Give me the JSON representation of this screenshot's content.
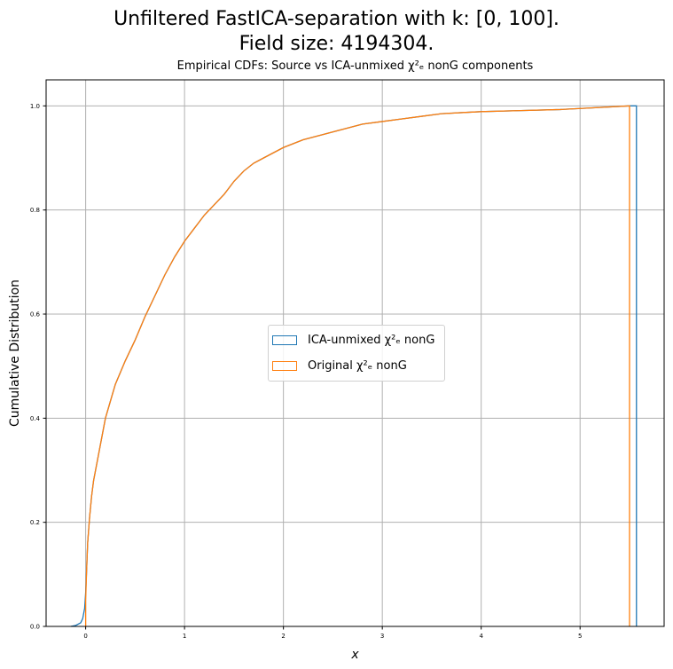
{
  "chart_data": {
    "type": "line",
    "suptitle_line1": "Unfiltered FastICA-separation with k: [0, 100].",
    "suptitle_line2": "Field size: 4194304.",
    "title": "Empirical CDFs: Source vs ICA-unmixed χ²ₑ nonG components",
    "xlabel": "x",
    "ylabel": "Cumulative Distribution",
    "xlim": [
      -0.4,
      5.85
    ],
    "ylim": [
      0.0,
      1.05
    ],
    "xticks": [
      "0",
      "1",
      "2",
      "3",
      "4",
      "5"
    ],
    "yticks": [
      "0.0",
      "0.2",
      "0.4",
      "0.6",
      "0.8",
      "1.0"
    ],
    "grid": true,
    "legend_position": "center",
    "series": [
      {
        "name": "ICA-unmixed χ²ₑ nonG",
        "color": "#1f77b4",
        "x": [
          -0.15,
          -0.1,
          -0.05,
          -0.03,
          -0.01,
          0.0,
          0.01,
          0.02,
          0.04,
          0.06,
          0.08,
          0.1,
          0.15,
          0.2,
          0.3,
          0.4,
          0.5,
          0.6,
          0.7,
          0.8,
          0.9,
          1.0,
          1.1,
          1.2,
          1.3,
          1.4,
          1.5,
          1.6,
          1.7,
          1.8,
          1.9,
          2.0,
          2.2,
          2.4,
          2.6,
          2.8,
          3.0,
          3.2,
          3.4,
          3.6,
          3.8,
          4.0,
          4.4,
          4.8,
          5.2,
          5.5,
          5.57,
          5.57
        ],
        "y": [
          0.0,
          0.002,
          0.007,
          0.015,
          0.035,
          0.065,
          0.11,
          0.16,
          0.21,
          0.25,
          0.28,
          0.3,
          0.35,
          0.4,
          0.465,
          0.51,
          0.55,
          0.595,
          0.635,
          0.675,
          0.71,
          0.74,
          0.765,
          0.79,
          0.81,
          0.83,
          0.855,
          0.875,
          0.89,
          0.9,
          0.91,
          0.92,
          0.935,
          0.945,
          0.955,
          0.965,
          0.97,
          0.975,
          0.98,
          0.985,
          0.987,
          0.989,
          0.991,
          0.993,
          0.997,
          1.0,
          1.0,
          0.0
        ]
      },
      {
        "name": "Original χ²ₑ nonG",
        "color": "#ff7f0e",
        "x": [
          0.0,
          0.0,
          0.01,
          0.02,
          0.04,
          0.06,
          0.08,
          0.1,
          0.15,
          0.2,
          0.3,
          0.4,
          0.5,
          0.6,
          0.7,
          0.8,
          0.9,
          1.0,
          1.1,
          1.2,
          1.3,
          1.4,
          1.5,
          1.6,
          1.7,
          1.8,
          1.9,
          2.0,
          2.2,
          2.4,
          2.6,
          2.8,
          3.0,
          3.2,
          3.4,
          3.6,
          3.8,
          4.0,
          4.4,
          4.8,
          5.2,
          5.5,
          5.5
        ],
        "y": [
          0.0,
          0.05,
          0.11,
          0.16,
          0.21,
          0.25,
          0.28,
          0.3,
          0.35,
          0.4,
          0.465,
          0.51,
          0.55,
          0.595,
          0.635,
          0.675,
          0.71,
          0.74,
          0.765,
          0.79,
          0.81,
          0.83,
          0.855,
          0.875,
          0.89,
          0.9,
          0.91,
          0.92,
          0.935,
          0.945,
          0.955,
          0.965,
          0.97,
          0.975,
          0.98,
          0.985,
          0.987,
          0.989,
          0.991,
          0.993,
          0.997,
          1.0,
          0.0
        ]
      }
    ]
  }
}
